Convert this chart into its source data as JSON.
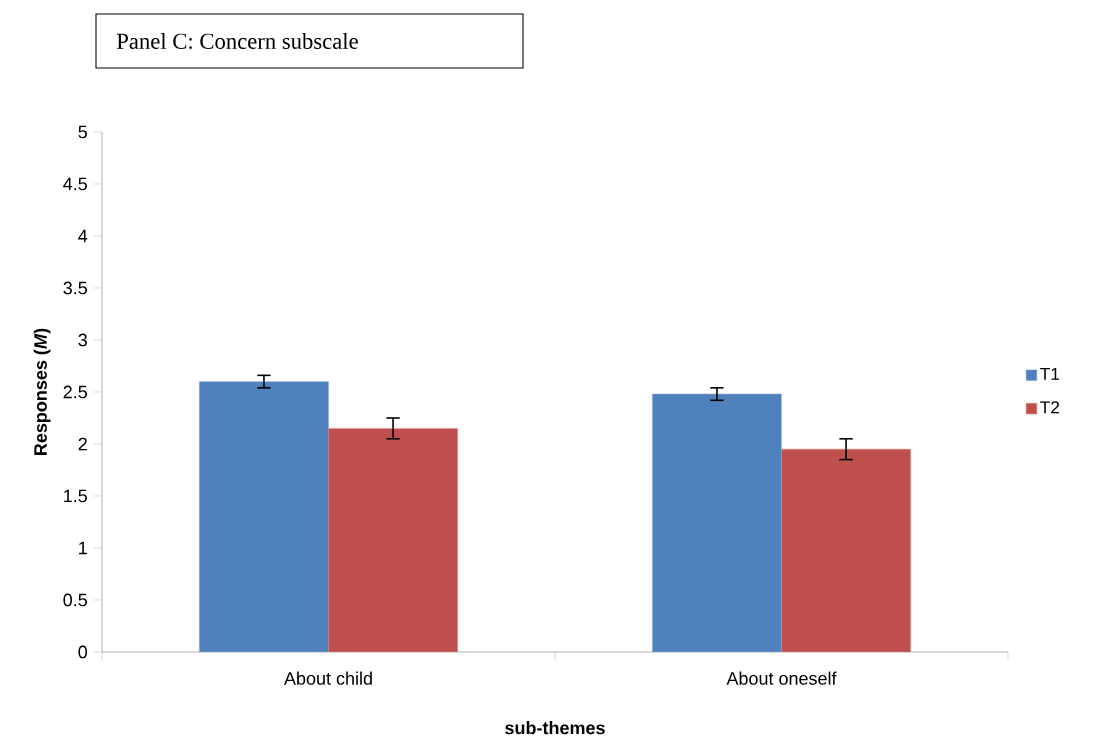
{
  "chart_data": {
    "type": "bar",
    "title": "Panel C: Concern subscale",
    "xlabel": "sub-themes",
    "ylabel": "Responses (*M*)",
    "categories": [
      "About child",
      "About oneself"
    ],
    "series": [
      {
        "name": "T1",
        "color": "#4f81bd",
        "values": [
          2.6,
          2.48
        ],
        "errors": [
          0.06,
          0.06
        ]
      },
      {
        "name": "T2",
        "color": "#c0504d",
        "values": [
          2.15,
          1.95
        ],
        "errors": [
          0.1,
          0.1
        ]
      }
    ],
    "ylim": [
      0,
      5
    ],
    "yticks": [
      0,
      0.5,
      1,
      1.5,
      2,
      2.5,
      3,
      3.5,
      4,
      4.5,
      5
    ],
    "grid": false,
    "legend": "right"
  }
}
